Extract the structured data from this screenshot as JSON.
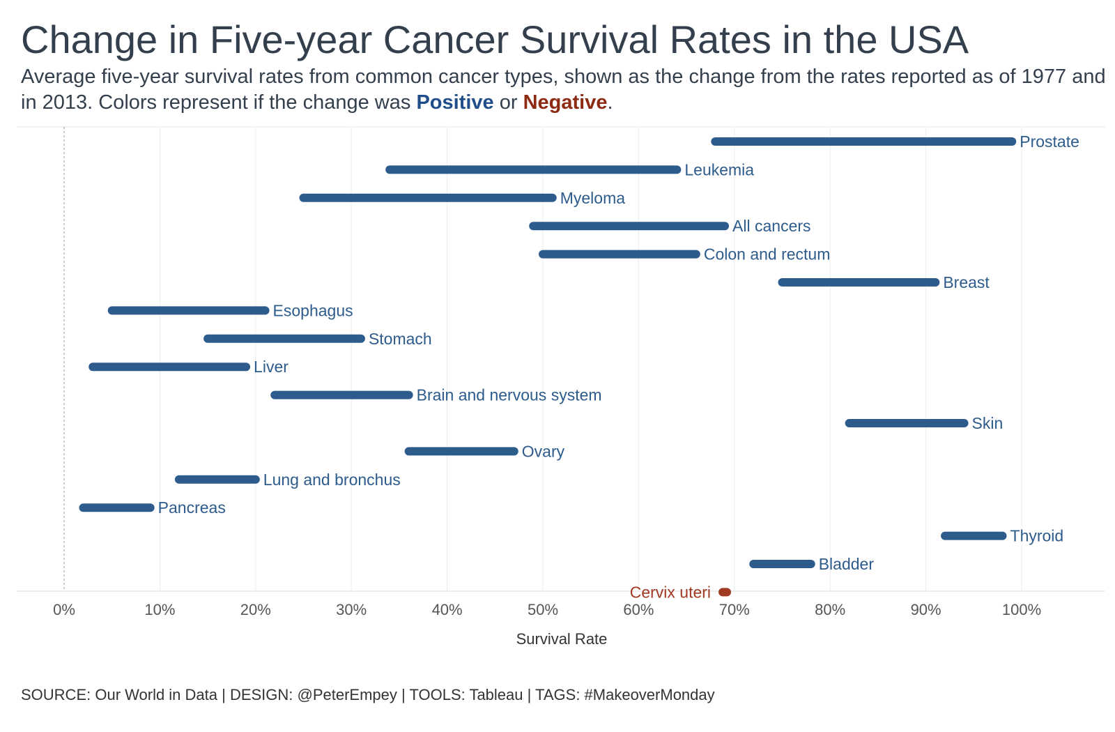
{
  "title": "Change in Five-year Cancer Survival Rates in the USA",
  "subtitle": {
    "lead": "Average five-year survival rates from common cancer types, shown as the change from the rates reported as of 1977 and in 2013.  Colors represent if the change was ",
    "positive_label": "Positive",
    "joiner": " or ",
    "negative_label": "Negative",
    "end": "."
  },
  "footer": "SOURCE: Our World in Data | DESIGN: @PeterEmpey | TOOLS: Tableau | TAGS: #MakeoverMonday",
  "colors": {
    "positive": "#2d5b8c",
    "negative": "#a13a22",
    "axis_text": "#555555",
    "grid": "#ececec"
  },
  "chart_data": {
    "type": "dumbbell",
    "xlabel": "Survival Rate",
    "ylabel": "",
    "xlim": [
      -0.05,
      1.09
    ],
    "x_ticks": [
      {
        "value": 0.0,
        "label": "0%"
      },
      {
        "value": 0.1,
        "label": "10%"
      },
      {
        "value": 0.2,
        "label": "20%"
      },
      {
        "value": 0.3,
        "label": "30%"
      },
      {
        "value": 0.4,
        "label": "40%"
      },
      {
        "value": 0.5,
        "label": "50%"
      },
      {
        "value": 0.6,
        "label": "60%"
      },
      {
        "value": 0.7,
        "label": "70%"
      },
      {
        "value": 0.8,
        "label": "80%"
      },
      {
        "value": 0.9,
        "label": "90%"
      },
      {
        "value": 1.0,
        "label": "100%"
      }
    ],
    "grid": true,
    "series": [
      {
        "name": "Prostate",
        "rate_1977": 0.68,
        "rate_2013": 0.99
      },
      {
        "name": "Leukemia",
        "rate_1977": 0.34,
        "rate_2013": 0.64
      },
      {
        "name": "Myeloma",
        "rate_1977": 0.25,
        "rate_2013": 0.51
      },
      {
        "name": "All cancers",
        "rate_1977": 0.49,
        "rate_2013": 0.69
      },
      {
        "name": "Colon and rectum",
        "rate_1977": 0.5,
        "rate_2013": 0.66
      },
      {
        "name": "Breast",
        "rate_1977": 0.75,
        "rate_2013": 0.91
      },
      {
        "name": "Esophagus",
        "rate_1977": 0.05,
        "rate_2013": 0.21
      },
      {
        "name": "Stomach",
        "rate_1977": 0.15,
        "rate_2013": 0.31
      },
      {
        "name": "Liver",
        "rate_1977": 0.03,
        "rate_2013": 0.19
      },
      {
        "name": "Brain and nervous system",
        "rate_1977": 0.22,
        "rate_2013": 0.36
      },
      {
        "name": "Skin",
        "rate_1977": 0.82,
        "rate_2013": 0.94
      },
      {
        "name": "Ovary",
        "rate_1977": 0.36,
        "rate_2013": 0.47
      },
      {
        "name": "Lung and bronchus",
        "rate_1977": 0.12,
        "rate_2013": 0.2
      },
      {
        "name": "Pancreas",
        "rate_1977": 0.02,
        "rate_2013": 0.09
      },
      {
        "name": "Thyroid",
        "rate_1977": 0.92,
        "rate_2013": 0.98
      },
      {
        "name": "Bladder",
        "rate_1977": 0.72,
        "rate_2013": 0.78
      },
      {
        "name": "Cervix uteri",
        "rate_1977": 0.69,
        "rate_2013": 0.69
      }
    ]
  }
}
